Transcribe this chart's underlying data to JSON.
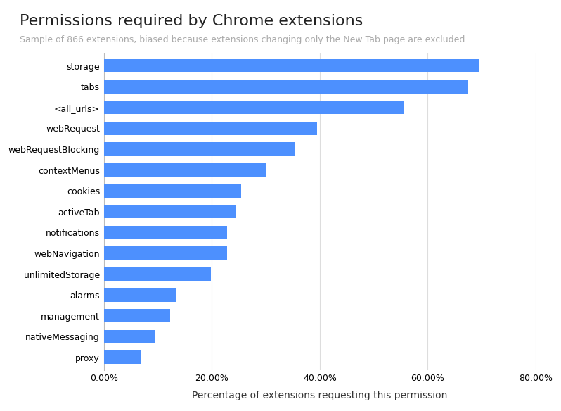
{
  "title": "Permissions required by Chrome extensions",
  "subtitle": "Sample of 866 extensions, biased because extensions changing only the New Tab page are excluded",
  "xlabel": "Percentage of extensions requesting this permission",
  "categories": [
    "storage",
    "tabs",
    "<all_urls>",
    "webRequest",
    "webRequestBlocking",
    "contextMenus",
    "cookies",
    "activeTab",
    "notifications",
    "webNavigation",
    "unlimitedStorage",
    "alarms",
    "management",
    "nativeMessaging",
    "proxy"
  ],
  "values": [
    0.695,
    0.675,
    0.555,
    0.395,
    0.355,
    0.3,
    0.255,
    0.245,
    0.228,
    0.228,
    0.198,
    0.133,
    0.123,
    0.095,
    0.068
  ],
  "bar_color": "#4d90fe",
  "xlim": [
    0,
    0.8
  ],
  "xticks": [
    0.0,
    0.2,
    0.4,
    0.6,
    0.8
  ],
  "xtick_labels": [
    "0.00%",
    "20.00%",
    "40.00%",
    "60.00%",
    "80.00%"
  ],
  "background_color": "#ffffff",
  "title_color": "#222222",
  "subtitle_color": "#aaaaaa",
  "title_fontsize": 16,
  "subtitle_fontsize": 9,
  "label_fontsize": 9,
  "tick_fontsize": 9,
  "xlabel_fontsize": 10
}
